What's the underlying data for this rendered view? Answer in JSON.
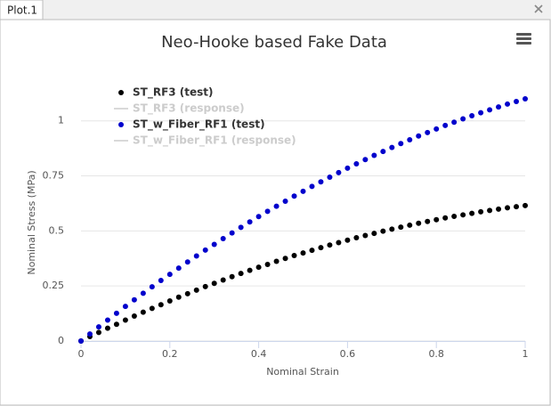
{
  "tab": "Plot.1",
  "chart_data": {
    "type": "scatter",
    "title": "Neo-Hooke based Fake Data",
    "x_label": "Nominal Strain",
    "y_label": "Nominal Stress (MPa)",
    "xlim": [
      0,
      1
    ],
    "xticks": [
      0,
      0.2,
      0.4,
      0.6,
      0.8,
      1
    ],
    "ylim": [
      0,
      1.1
    ],
    "yticks": [
      0,
      0.25,
      0.5,
      0.75,
      1
    ],
    "grid": true,
    "legend": "upper left",
    "x": [
      0,
      0.02,
      0.04,
      0.06,
      0.08,
      0.1,
      0.12,
      0.14,
      0.16,
      0.18,
      0.2,
      0.22,
      0.24,
      0.26,
      0.28,
      0.3,
      0.32,
      0.34,
      0.36,
      0.38,
      0.4,
      0.42,
      0.44,
      0.46,
      0.48,
      0.5,
      0.52,
      0.54,
      0.56,
      0.58,
      0.6,
      0.62,
      0.64,
      0.66,
      0.68,
      0.7,
      0.72,
      0.74,
      0.76,
      0.78,
      0.8,
      0.82,
      0.84,
      0.86,
      0.88,
      0.9,
      0.92,
      0.94,
      0.96,
      0.98,
      1
    ],
    "series": [
      {
        "name": "ST_RF3 (test)",
        "color": "#000000",
        "marker": "dot",
        "visible": true,
        "values": [
          0,
          0.02,
          0.039,
          0.058,
          0.076,
          0.095,
          0.113,
          0.131,
          0.148,
          0.165,
          0.182,
          0.199,
          0.215,
          0.231,
          0.247,
          0.262,
          0.277,
          0.292,
          0.307,
          0.321,
          0.335,
          0.348,
          0.362,
          0.375,
          0.388,
          0.4,
          0.412,
          0.424,
          0.436,
          0.447,
          0.458,
          0.469,
          0.479,
          0.489,
          0.499,
          0.508,
          0.517,
          0.526,
          0.535,
          0.543,
          0.551,
          0.559,
          0.566,
          0.573,
          0.58,
          0.587,
          0.593,
          0.599,
          0.605,
          0.61,
          0.615
        ]
      },
      {
        "name": "ST_RF3 (response)",
        "color": "#000000",
        "marker": "line",
        "visible": false
      },
      {
        "name": "ST_w_Fiber_RF1 (test)",
        "color": "#0000cc",
        "marker": "dot",
        "visible": true,
        "values": [
          0,
          0.032,
          0.064,
          0.095,
          0.126,
          0.157,
          0.187,
          0.217,
          0.246,
          0.275,
          0.303,
          0.331,
          0.359,
          0.386,
          0.413,
          0.439,
          0.465,
          0.491,
          0.516,
          0.541,
          0.565,
          0.589,
          0.612,
          0.635,
          0.658,
          0.68,
          0.702,
          0.723,
          0.744,
          0.765,
          0.785,
          0.805,
          0.824,
          0.843,
          0.861,
          0.879,
          0.897,
          0.914,
          0.931,
          0.947,
          0.963,
          0.979,
          0.994,
          1.009,
          1.023,
          1.037,
          1.05,
          1.063,
          1.076,
          1.088,
          1.1
        ]
      },
      {
        "name": "ST_w_Fiber_RF1 (response)",
        "color": "#0000cc",
        "marker": "line",
        "visible": false
      }
    ]
  }
}
